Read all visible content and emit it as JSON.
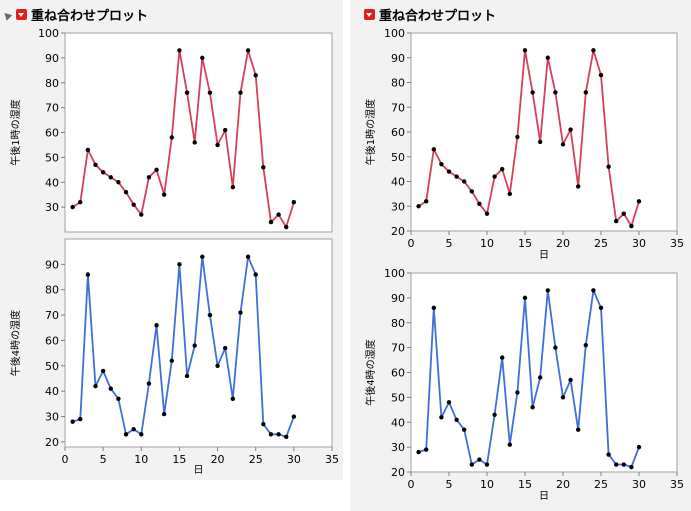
{
  "colors": {
    "red_series": "#d6405a",
    "blue_series": "#3f70d8",
    "point": "#000000",
    "frame": "#a0a0a0",
    "panel_bg": "#f2f2f2"
  },
  "left_panel": {
    "title": "重ね合わせプロット",
    "icons": [
      "disclosure-triangle-icon",
      "red-triangle-menu-icon"
    ]
  },
  "right_panel": {
    "title": "重ね合わせプロット",
    "icons": [
      "red-triangle-menu-icon"
    ]
  },
  "chart_data": [
    {
      "type": "line",
      "panel": "left",
      "position": "top",
      "xlabel": "",
      "ylabel": "午後1時の湿度",
      "xlim": [
        0,
        35
      ],
      "ylim": [
        20,
        100
      ],
      "xticks": [],
      "yticks": [
        30,
        40,
        50,
        60,
        70,
        80,
        90,
        100
      ],
      "series": [
        {
          "color": "red",
          "x": [
            1,
            2,
            3,
            4,
            5,
            6,
            7,
            8,
            9,
            10,
            11,
            12,
            13,
            14,
            15,
            16,
            17,
            18,
            19,
            20,
            21,
            22,
            23,
            24,
            25,
            26,
            27,
            28,
            29,
            30
          ],
          "y": [
            30,
            32,
            53,
            47,
            44,
            42,
            40,
            36,
            31,
            27,
            42,
            45,
            35,
            58,
            93,
            76,
            56,
            90,
            76,
            55,
            61,
            38,
            76,
            93,
            83,
            46,
            24,
            27,
            22,
            32
          ]
        }
      ]
    },
    {
      "type": "line",
      "panel": "left",
      "position": "bottom",
      "xlabel": "日",
      "ylabel": "午後4時の湿度",
      "xlim": [
        0,
        35
      ],
      "ylim": [
        18,
        100
      ],
      "xticks": [
        0,
        5,
        10,
        15,
        20,
        25,
        30,
        35
      ],
      "yticks": [
        20,
        30,
        40,
        50,
        60,
        70,
        80,
        90
      ],
      "series": [
        {
          "color": "blue",
          "x": [
            1,
            2,
            3,
            4,
            5,
            6,
            7,
            8,
            9,
            10,
            11,
            12,
            13,
            14,
            15,
            16,
            17,
            18,
            19,
            20,
            21,
            22,
            23,
            24,
            25,
            26,
            27,
            28,
            29,
            30
          ],
          "y": [
            28,
            29,
            86,
            42,
            48,
            41,
            37,
            23,
            25,
            23,
            43,
            66,
            31,
            52,
            90,
            46,
            58,
            93,
            70,
            50,
            57,
            37,
            71,
            93,
            86,
            27,
            23,
            23,
            22,
            30
          ]
        }
      ]
    },
    {
      "type": "line",
      "panel": "right",
      "position": "top",
      "xlabel": "日",
      "ylabel": "午後1時の湿度",
      "xlim": [
        0,
        35
      ],
      "ylim": [
        20,
        100
      ],
      "xticks": [
        0,
        5,
        10,
        15,
        20,
        25,
        30,
        35
      ],
      "yticks": [
        20,
        30,
        40,
        50,
        60,
        70,
        80,
        90,
        100
      ],
      "series": [
        {
          "color": "red",
          "x": [
            1,
            2,
            3,
            4,
            5,
            6,
            7,
            8,
            9,
            10,
            11,
            12,
            13,
            14,
            15,
            16,
            17,
            18,
            19,
            20,
            21,
            22,
            23,
            24,
            25,
            26,
            27,
            28,
            29,
            30
          ],
          "y": [
            30,
            32,
            53,
            47,
            44,
            42,
            40,
            36,
            31,
            27,
            42,
            45,
            35,
            58,
            93,
            76,
            56,
            90,
            76,
            55,
            61,
            38,
            76,
            93,
            83,
            46,
            24,
            27,
            22,
            32
          ]
        }
      ]
    },
    {
      "type": "line",
      "panel": "right",
      "position": "bottom",
      "xlabel": "日",
      "ylabel": "午後4時の湿度",
      "xlim": [
        0,
        35
      ],
      "ylim": [
        20,
        100
      ],
      "xticks": [
        0,
        5,
        10,
        15,
        20,
        25,
        30,
        35
      ],
      "yticks": [
        20,
        30,
        40,
        50,
        60,
        70,
        80,
        90,
        100
      ],
      "series": [
        {
          "color": "blue",
          "x": [
            1,
            2,
            3,
            4,
            5,
            6,
            7,
            8,
            9,
            10,
            11,
            12,
            13,
            14,
            15,
            16,
            17,
            18,
            19,
            20,
            21,
            22,
            23,
            24,
            25,
            26,
            27,
            28,
            29,
            30
          ],
          "y": [
            28,
            29,
            86,
            42,
            48,
            41,
            37,
            23,
            25,
            23,
            43,
            66,
            31,
            52,
            90,
            46,
            58,
            93,
            70,
            50,
            57,
            37,
            71,
            93,
            86,
            27,
            23,
            23,
            22,
            30
          ]
        }
      ]
    }
  ]
}
